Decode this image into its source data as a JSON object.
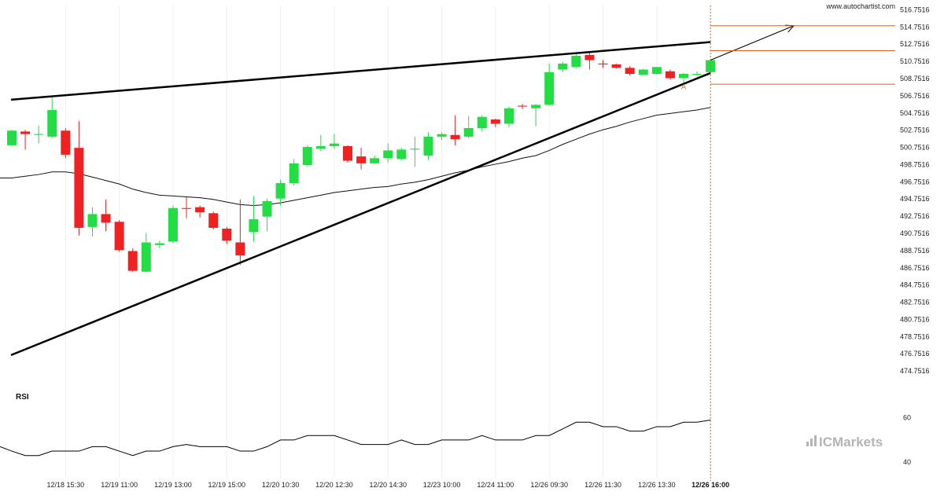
{
  "source": "www.autochartist.com",
  "brand": {
    "prefix": "IC",
    "name": "Markets",
    "color": "#b4b4b4"
  },
  "rsi_label": "RSI",
  "colors": {
    "bull": "#22dd44",
    "bear": "#ee2222",
    "pattern_line": "#000000",
    "level_line": "#e06020",
    "ma_line": "#111111",
    "grid": "#eeeeee"
  },
  "chart_data": [
    {
      "type": "candlestick",
      "title": "",
      "ylim": [
        472.7516,
        517.2516
      ],
      "y_ticks": [
        "516.7516",
        "514.7516",
        "512.7516",
        "510.7516",
        "508.7516",
        "506.7516",
        "504.7516",
        "502.7516",
        "500.7516",
        "498.7516",
        "496.7516",
        "494.7516",
        "492.7516",
        "490.7516",
        "488.7516",
        "486.7516",
        "484.7516",
        "482.7516",
        "480.7516",
        "478.7516",
        "476.7516",
        "474.7516"
      ],
      "x_ticks": [
        {
          "label": "12/18 15:30",
          "index": 4
        },
        {
          "label": "12/19 11:00",
          "index": 8
        },
        {
          "label": "12/19 13:00",
          "index": 12
        },
        {
          "label": "12/19 15:00",
          "index": 16
        },
        {
          "label": "12/20 10:30",
          "index": 20
        },
        {
          "label": "12/20 12:30",
          "index": 24
        },
        {
          "label": "12/20 14:30",
          "index": 28
        },
        {
          "label": "12/23 10:00",
          "index": 32
        },
        {
          "label": "12/24 11:00",
          "index": 36
        },
        {
          "label": "12/26 09:30",
          "index": 40
        },
        {
          "label": "12/26 11:30",
          "index": 44
        },
        {
          "label": "12/26 13:30",
          "index": 48
        },
        {
          "label": "12/26 16:00",
          "index": 52
        }
      ],
      "candles": [
        {
          "o": 501.0,
          "h": 502.8,
          "l": 501.0,
          "c": 502.7
        },
        {
          "o": 502.6,
          "h": 502.8,
          "l": 500.5,
          "c": 502.3
        },
        {
          "o": 502.2,
          "h": 503.3,
          "l": 501.2,
          "c": 502.3
        },
        {
          "o": 502.0,
          "h": 506.6,
          "l": 501.8,
          "c": 505.1
        },
        {
          "o": 502.7,
          "h": 503.0,
          "l": 499.5,
          "c": 499.9
        },
        {
          "o": 500.7,
          "h": 503.8,
          "l": 490.5,
          "c": 491.4
        },
        {
          "o": 491.5,
          "h": 493.8,
          "l": 490.4,
          "c": 493.0
        },
        {
          "o": 493.0,
          "h": 494.7,
          "l": 491.0,
          "c": 492.0
        },
        {
          "o": 492.1,
          "h": 492.3,
          "l": 488.6,
          "c": 488.8
        },
        {
          "o": 488.7,
          "h": 489.0,
          "l": 486.3,
          "c": 486.4
        },
        {
          "o": 486.3,
          "h": 490.8,
          "l": 486.2,
          "c": 489.7
        },
        {
          "o": 489.4,
          "h": 489.9,
          "l": 489.0,
          "c": 489.6
        },
        {
          "o": 489.8,
          "h": 494.0,
          "l": 489.6,
          "c": 493.7
        },
        {
          "o": 493.7,
          "h": 495.0,
          "l": 492.5,
          "c": 493.6
        },
        {
          "o": 493.8,
          "h": 494.0,
          "l": 492.6,
          "c": 493.2
        },
        {
          "o": 493.1,
          "h": 493.3,
          "l": 491.2,
          "c": 491.4
        },
        {
          "o": 491.3,
          "h": 491.5,
          "l": 489.5,
          "c": 489.9
        },
        {
          "o": 489.7,
          "h": 494.7,
          "l": 487.1,
          "c": 488.2
        },
        {
          "o": 490.9,
          "h": 495.1,
          "l": 489.8,
          "c": 492.4
        },
        {
          "o": 492.7,
          "h": 494.8,
          "l": 491.0,
          "c": 494.5
        },
        {
          "o": 494.8,
          "h": 497.0,
          "l": 494.0,
          "c": 496.6
        },
        {
          "o": 496.6,
          "h": 499.4,
          "l": 496.3,
          "c": 498.9
        },
        {
          "o": 498.7,
          "h": 501.0,
          "l": 498.5,
          "c": 500.8
        },
        {
          "o": 500.6,
          "h": 502.2,
          "l": 500.3,
          "c": 500.9
        },
        {
          "o": 500.9,
          "h": 502.3,
          "l": 500.6,
          "c": 501.2
        },
        {
          "o": 500.9,
          "h": 501.0,
          "l": 499.0,
          "c": 499.2
        },
        {
          "o": 499.7,
          "h": 500.7,
          "l": 498.2,
          "c": 498.9
        },
        {
          "o": 498.9,
          "h": 499.8,
          "l": 498.8,
          "c": 499.5
        },
        {
          "o": 499.5,
          "h": 501.2,
          "l": 499.0,
          "c": 500.4
        },
        {
          "o": 499.4,
          "h": 500.7,
          "l": 499.2,
          "c": 500.5
        },
        {
          "o": 500.5,
          "h": 502.0,
          "l": 498.5,
          "c": 500.6
        },
        {
          "o": 499.8,
          "h": 502.5,
          "l": 499.3,
          "c": 502.0
        },
        {
          "o": 502.0,
          "h": 502.5,
          "l": 501.6,
          "c": 502.3
        },
        {
          "o": 502.2,
          "h": 504.5,
          "l": 501.0,
          "c": 501.7
        },
        {
          "o": 502.0,
          "h": 504.4,
          "l": 501.8,
          "c": 503.0
        },
        {
          "o": 503.0,
          "h": 504.5,
          "l": 502.6,
          "c": 504.3
        },
        {
          "o": 504.0,
          "h": 504.1,
          "l": 503.1,
          "c": 503.5
        },
        {
          "o": 503.5,
          "h": 505.5,
          "l": 503.1,
          "c": 505.3
        },
        {
          "o": 505.6,
          "h": 505.8,
          "l": 505.2,
          "c": 505.5
        },
        {
          "o": 505.3,
          "h": 505.8,
          "l": 503.2,
          "c": 505.7
        },
        {
          "o": 505.7,
          "h": 510.5,
          "l": 505.6,
          "c": 509.5
        },
        {
          "o": 509.8,
          "h": 510.7,
          "l": 509.5,
          "c": 510.5
        },
        {
          "o": 510.1,
          "h": 511.8,
          "l": 510.0,
          "c": 511.4
        },
        {
          "o": 511.5,
          "h": 511.8,
          "l": 509.8,
          "c": 510.9
        },
        {
          "o": 510.5,
          "h": 510.9,
          "l": 510.0,
          "c": 510.4
        },
        {
          "o": 510.4,
          "h": 510.5,
          "l": 509.9,
          "c": 510.0
        },
        {
          "o": 510.0,
          "h": 510.2,
          "l": 509.1,
          "c": 509.3
        },
        {
          "o": 509.2,
          "h": 509.9,
          "l": 509.2,
          "c": 509.8
        },
        {
          "o": 509.3,
          "h": 510.1,
          "l": 509.2,
          "c": 510.1
        },
        {
          "o": 509.6,
          "h": 509.8,
          "l": 508.6,
          "c": 508.8
        },
        {
          "o": 508.8,
          "h": 509.4,
          "l": 508.0,
          "c": 509.3
        },
        {
          "o": 509.2,
          "h": 509.6,
          "l": 509.0,
          "c": 509.3
        },
        {
          "o": 509.5,
          "h": 511.0,
          "l": 509.4,
          "c": 510.9
        }
      ],
      "moving_average": [
        497.2,
        497.4,
        497.6,
        497.9,
        497.9,
        497.7,
        497.3,
        496.9,
        496.5,
        495.9,
        495.5,
        495.2,
        495.1,
        495.0,
        494.9,
        494.7,
        494.4,
        494.1,
        494.0,
        494.1,
        494.3,
        494.6,
        494.9,
        495.2,
        495.5,
        495.7,
        495.9,
        496.1,
        496.2,
        496.5,
        496.7,
        497.0,
        497.4,
        497.8,
        498.1,
        498.5,
        498.8,
        499.1,
        499.5,
        499.8,
        500.4,
        501.1,
        501.7,
        502.3,
        502.8,
        503.2,
        503.7,
        504.1,
        504.5,
        504.7,
        504.9,
        505.1,
        505.4
      ],
      "pattern": {
        "upper_line": [
          {
            "x": -0.5,
            "y": 506.3
          },
          {
            "x": 52,
            "y": 513.0
          }
        ],
        "lower_line": [
          {
            "x": -0.5,
            "y": 476.6
          },
          {
            "x": 52,
            "y": 509.4
          }
        ],
        "forecast_arrow": [
          {
            "x": 52,
            "y": 510.9
          },
          {
            "x": 58.2,
            "y": 514.9
          }
        ],
        "marker": {
          "index": 50,
          "y": 507.8,
          "text": "A"
        }
      },
      "levels": [
        {
          "y": 514.9,
          "from_index": 52
        },
        {
          "y": 512.0,
          "from_index": 52
        },
        {
          "y": 508.1,
          "from_index": 52
        }
      ],
      "current_index": 52
    },
    {
      "type": "line",
      "title": "RSI",
      "ylim": [
        33,
        68
      ],
      "y_ticks": [
        "60",
        "40"
      ],
      "values": [
        45,
        43,
        43,
        45,
        45,
        45,
        47,
        47,
        45,
        43,
        45,
        45,
        47,
        48,
        47,
        47,
        47,
        45,
        45,
        47,
        50,
        50,
        52,
        52,
        52,
        50,
        48,
        48,
        48,
        50,
        48,
        48,
        50,
        50,
        50,
        52,
        50,
        50,
        50,
        52,
        52,
        55,
        58,
        58,
        56,
        56,
        54,
        54,
        56,
        56,
        58,
        58,
        59
      ]
    }
  ]
}
